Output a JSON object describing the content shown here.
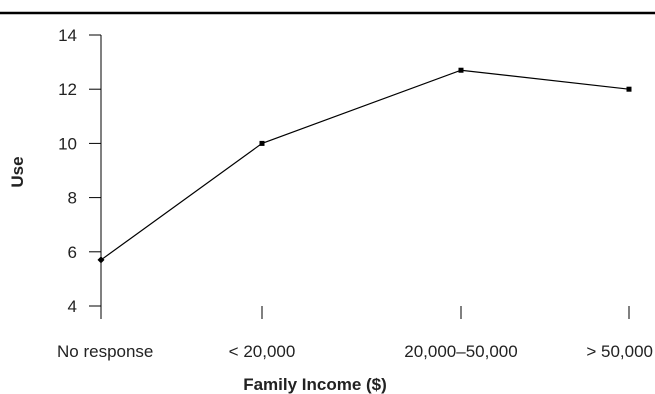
{
  "chart_data": {
    "type": "line",
    "title": "",
    "xlabel": "Family Income ($)",
    "ylabel": "Use",
    "categories": [
      "No response",
      "< 20,000",
      "20,000–50,000",
      "> 50,000"
    ],
    "series": [
      {
        "values": [
          5.7,
          10.0,
          12.7,
          12.0
        ]
      }
    ],
    "ylim": [
      4,
      14
    ],
    "yticks": [
      "4",
      "6",
      "8",
      "10",
      "12",
      "14"
    ],
    "grid": false,
    "legend": "none",
    "colors": {
      "line": "#000000",
      "axis": "#000000",
      "text": "#222222"
    }
  }
}
